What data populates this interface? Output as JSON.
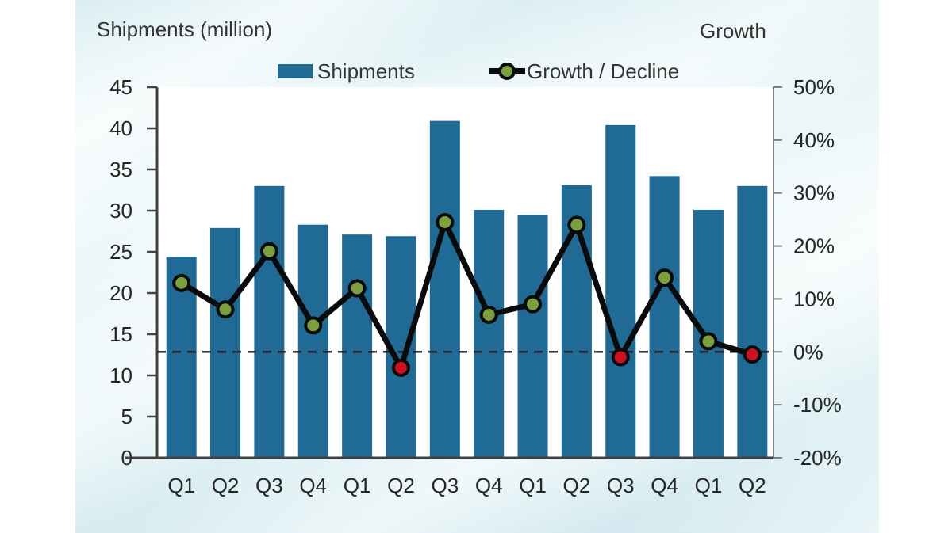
{
  "chart_data": {
    "type": "combo-bar-line",
    "categories": [
      "Q1",
      "Q2",
      "Q3",
      "Q4",
      "Q1",
      "Q2",
      "Q3",
      "Q4",
      "Q1",
      "Q2",
      "Q3",
      "Q4",
      "Q1",
      "Q2"
    ],
    "series": [
      {
        "name": "Shipments",
        "type": "bar",
        "axis": "left",
        "color": "#1F6B96",
        "values": [
          24.4,
          27.9,
          33.0,
          28.3,
          27.1,
          26.9,
          40.9,
          30.1,
          29.5,
          33.1,
          40.4,
          34.2,
          30.1,
          33.0
        ]
      },
      {
        "name": "Growth / Decline",
        "type": "line",
        "axis": "right",
        "line_color": "#0a0a0a",
        "marker_positive_color": "#7AA03C",
        "marker_negative_color": "#D01020",
        "values_pct": [
          13,
          8,
          19,
          5,
          12,
          -3,
          24.5,
          7,
          9,
          24,
          -1,
          14,
          2,
          -0.5
        ]
      }
    ],
    "left_axis": {
      "title": "Shipments (million)",
      "min": 0,
      "max": 45,
      "step": 5,
      "tick_labels": [
        "45",
        "40",
        "35",
        "30",
        "25",
        "20",
        "15",
        "10",
        "5",
        "0"
      ]
    },
    "right_axis": {
      "title": "Growth",
      "min": -20,
      "max": 50,
      "step": 10,
      "tick_labels": [
        "50%",
        "40%",
        "30%",
        "20%",
        "10%",
        "0%",
        "-10%",
        "-20%"
      ]
    },
    "zero_line": {
      "value_pct": 0,
      "style": "dashed",
      "color": "#1a1a1a"
    },
    "legend": {
      "position": "top",
      "entries": [
        "Shipments",
        "Growth / Decline"
      ]
    },
    "grid": "off",
    "plot_background": "#ffffff"
  }
}
